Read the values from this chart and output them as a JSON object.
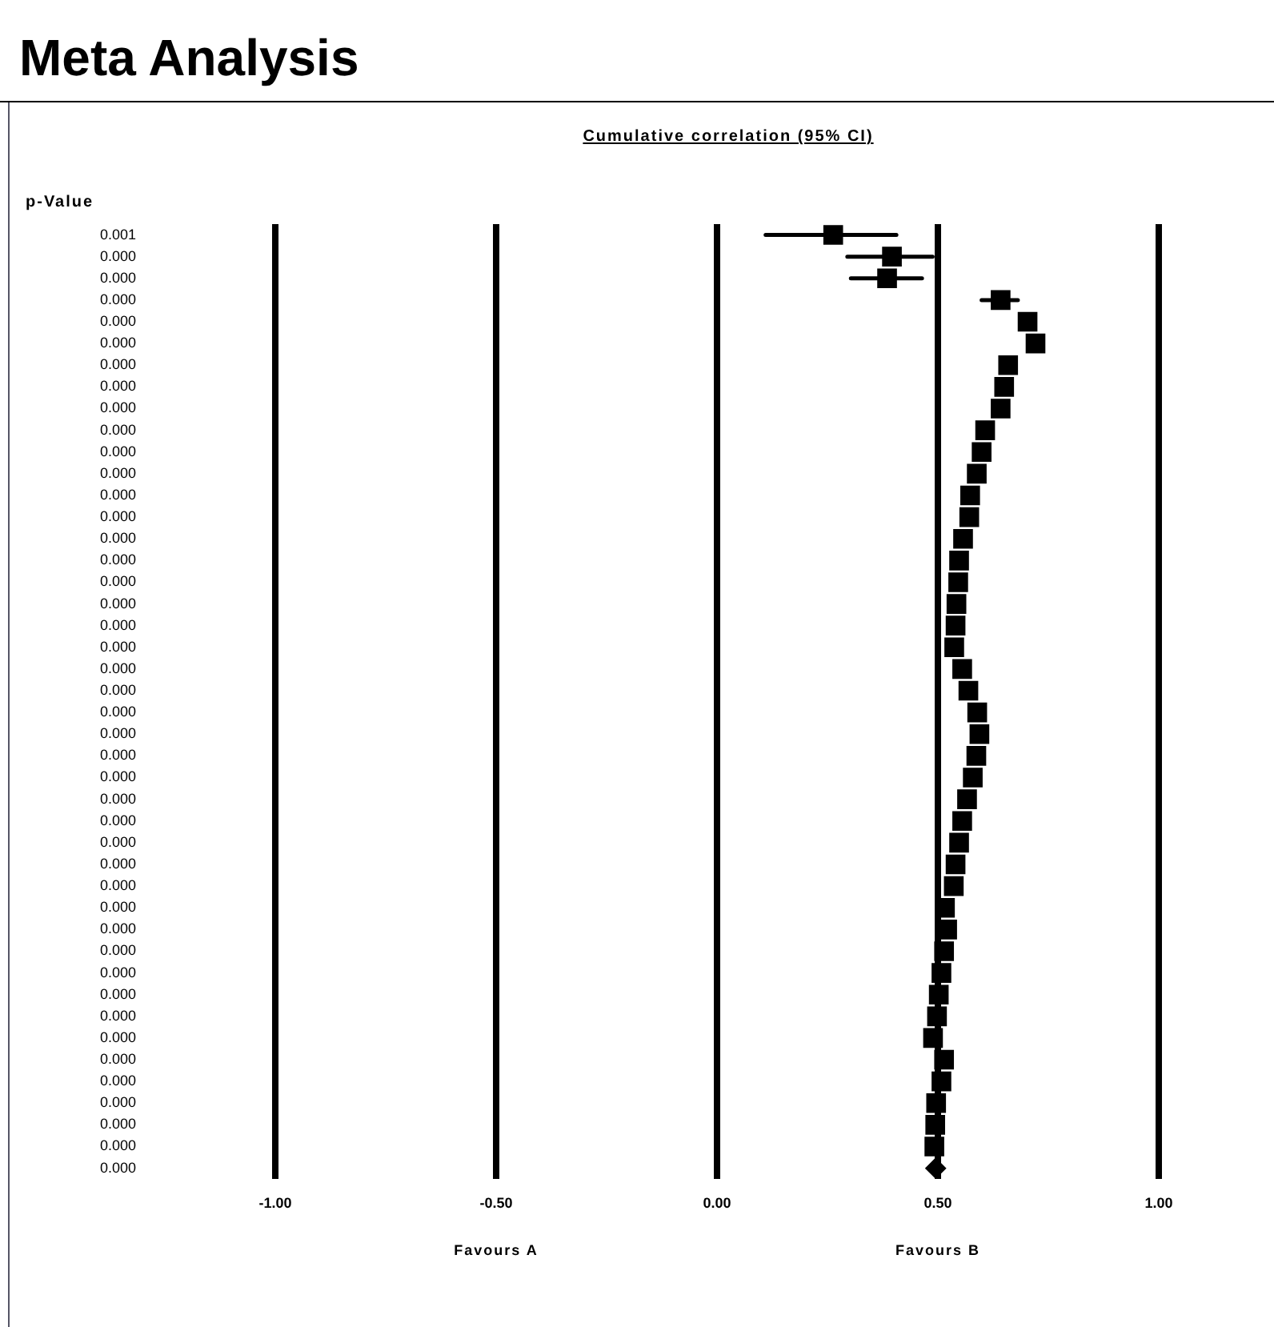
{
  "chart_data": {
    "type": "scatter",
    "title": "Meta Analysis",
    "subtitle": "Cumulative correlation (95% CI)",
    "ylabel": "p-Value",
    "categories": [
      "0.001",
      "0.000",
      "0.000",
      "0.000",
      "0.000",
      "0.000",
      "0.000",
      "0.000",
      "0.000",
      "0.000",
      "0.000",
      "0.000",
      "0.000",
      "0.000",
      "0.000",
      "0.000",
      "0.000",
      "0.000",
      "0.000",
      "0.000",
      "0.000",
      "0.000",
      "0.000",
      "0.000",
      "0.000",
      "0.000",
      "0.000",
      "0.000",
      "0.000",
      "0.000",
      "0.000",
      "0.000",
      "0.000",
      "0.000",
      "0.000",
      "0.000",
      "0.000",
      "0.000",
      "0.000",
      "0.000",
      "0.000",
      "0.000",
      "0.000",
      "0.000"
    ],
    "orientation": "horizontal",
    "marker": "square",
    "grid": "x",
    "legend": false,
    "xlim": [
      -1,
      1
    ],
    "xticks": [
      {
        "value": -1,
        "label": "-1.00"
      },
      {
        "value": -0.5,
        "label": "-0.50"
      },
      {
        "value": 0,
        "label": "0.00"
      },
      {
        "value": 0.5,
        "label": "0.50"
      },
      {
        "value": 1,
        "label": "1.00"
      }
    ],
    "series": [
      {
        "color": "#000000",
        "values": [
          0.263,
          0.396,
          0.385,
          0.642,
          0.703,
          0.721,
          0.659,
          0.65,
          0.642,
          0.607,
          0.599,
          0.588,
          0.573,
          0.571,
          0.557,
          0.548,
          0.546,
          0.542,
          0.54,
          0.537,
          0.555,
          0.569,
          0.589,
          0.594,
          0.587,
          0.579,
          0.566,
          0.555,
          0.548,
          0.54,
          0.536,
          0.516,
          0.521,
          0.514,
          0.508,
          0.502,
          0.498,
          0.489,
          0.514,
          0.508,
          0.496,
          0.494,
          0.492,
          null
        ],
        "errors": [
          [
            0.11,
            0.406
          ],
          [
            0.295,
            0.488
          ],
          [
            0.303,
            0.464
          ],
          [
            0.599,
            0.681
          ],
          null,
          null,
          null,
          null,
          null,
          null,
          null,
          null,
          null,
          null,
          null,
          null,
          null,
          null,
          null,
          null,
          null,
          null,
          null,
          null,
          null,
          null,
          null,
          null,
          null,
          null,
          null,
          null,
          null,
          null,
          null,
          null,
          null,
          null,
          null,
          null,
          null,
          null,
          null,
          null
        ]
      },
      {
        "color": "#000000",
        "marker": "diamond",
        "values": [
          null,
          null,
          null,
          null,
          null,
          null,
          null,
          null,
          null,
          null,
          null,
          null,
          null,
          null,
          null,
          null,
          null,
          null,
          null,
          null,
          null,
          null,
          null,
          null,
          null,
          null,
          null,
          null,
          null,
          null,
          null,
          null,
          null,
          null,
          null,
          null,
          null,
          null,
          null,
          null,
          null,
          null,
          null,
          0.495
        ]
      }
    ],
    "annotations": [
      "Favours A",
      "Favours B"
    ]
  }
}
